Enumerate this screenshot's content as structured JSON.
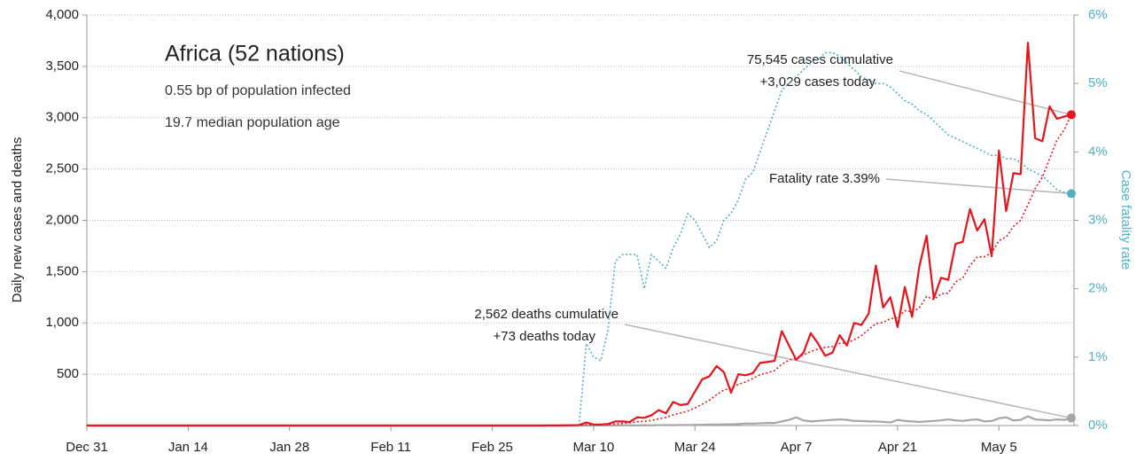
{
  "chart_data": {
    "type": "line",
    "title": "Africa (52 nations)",
    "annotations": [
      "0.55 bp of population infected",
      "19.7 median population age"
    ],
    "callouts": {
      "cases": [
        "75,545 cases cumulative",
        "+3,029 cases today"
      ],
      "fatality": [
        "Fatality rate 3.39%"
      ],
      "deaths": [
        "2,562 deaths cumulative",
        "+73 deaths today"
      ]
    },
    "ylabel": "Daily new cases and deaths",
    "y2label": "Case fatality rate",
    "categories": [
      "Dec 31",
      null,
      null,
      null,
      null,
      null,
      null,
      null,
      null,
      null,
      null,
      null,
      null,
      null,
      "Jan 14",
      null,
      null,
      null,
      null,
      null,
      null,
      null,
      null,
      null,
      null,
      null,
      null,
      null,
      "Jan 28",
      null,
      null,
      null,
      null,
      null,
      null,
      null,
      null,
      null,
      null,
      null,
      null,
      null,
      "Feb 11",
      null,
      null,
      null,
      null,
      null,
      null,
      null,
      null,
      null,
      null,
      null,
      null,
      null,
      "Feb 25",
      null,
      null,
      null,
      null,
      null,
      null,
      null,
      null,
      null,
      null,
      null,
      null,
      null,
      "Mar 10",
      null,
      null,
      null,
      null,
      null,
      null,
      null,
      null,
      null,
      null,
      null,
      null,
      null,
      "Mar 24",
      null,
      null,
      null,
      null,
      null,
      null,
      null,
      null,
      null,
      null,
      null,
      null,
      null,
      "Apr 7",
      null,
      null,
      null,
      null,
      null,
      null,
      null,
      null,
      null,
      null,
      null,
      null,
      null,
      "Apr 21",
      null,
      null,
      null,
      null,
      null,
      null,
      null,
      null,
      null,
      null,
      null,
      null,
      null,
      "May 5",
      null,
      null,
      null,
      null,
      null,
      null,
      null,
      null,
      null,
      null
    ],
    "ylim": [
      0,
      4000
    ],
    "yticks": [
      500,
      {
        "value": 1000,
        "label": "1,000"
      },
      {
        "value": 1500,
        "label": "1,500"
      },
      {
        "value": 2000,
        "label": "2,000"
      },
      {
        "value": 2500,
        "label": "2,500"
      },
      {
        "value": 3000,
        "label": "3,000"
      },
      {
        "value": 3500,
        "label": "3,500"
      },
      {
        "value": 4000,
        "label": "4,000"
      }
    ],
    "y2lim": [
      0,
      6
    ],
    "y2ticks": [
      {
        "value": 0,
        "label": "0%"
      },
      {
        "value": 1,
        "label": "1%"
      },
      {
        "value": 2,
        "label": "2%"
      },
      {
        "value": 3,
        "label": "3%"
      },
      {
        "value": 4,
        "label": "4%"
      },
      {
        "value": 5,
        "label": "5%"
      },
      {
        "value": 6,
        "label": "6%"
      }
    ],
    "grid": true,
    "series": [
      {
        "color": "#e8141c",
        "dashed": false,
        "end_marker": true,
        "values": [
          0,
          0,
          0,
          0,
          0,
          0,
          0,
          0,
          0,
          0,
          0,
          0,
          0,
          0,
          0,
          0,
          0,
          0,
          0,
          0,
          0,
          0,
          0,
          0,
          0,
          0,
          0,
          0,
          0,
          0,
          0,
          0,
          0,
          0,
          0,
          0,
          0,
          0,
          0,
          0,
          0,
          0,
          0,
          0,
          0,
          0,
          0,
          0,
          0,
          0,
          0,
          0,
          0,
          0,
          0,
          0,
          0,
          0,
          0,
          0,
          0,
          0,
          0,
          0,
          1,
          1,
          2,
          3,
          5,
          30,
          10,
          10,
          15,
          40,
          40,
          35,
          80,
          75,
          100,
          150,
          120,
          230,
          200,
          210,
          330,
          450,
          480,
          580,
          520,
          320,
          500,
          490,
          510,
          610,
          620,
          630,
          920,
          780,
          640,
          710,
          900,
          800,
          680,
          710,
          880,
          780,
          1000,
          980,
          1090,
          1560,
          1150,
          1250,
          960,
          1350,
          1060,
          1550,
          1850,
          1240,
          1440,
          1420,
          1770,
          1790,
          2110,
          1900,
          2010,
          1650,
          2680,
          2090,
          2460,
          2450,
          3730,
          2800,
          2770,
          3110,
          2990,
          3010,
          3029
        ]
      },
      {
        "color": "#e8141c",
        "dashed": true,
        "end_marker": false,
        "values": [
          0,
          0,
          0,
          0,
          0,
          0,
          0,
          0,
          0,
          0,
          0,
          0,
          0,
          0,
          0,
          0,
          0,
          0,
          0,
          0,
          0,
          0,
          0,
          0,
          0,
          0,
          0,
          0,
          0,
          0,
          0,
          0,
          0,
          0,
          0,
          0,
          0,
          0,
          0,
          0,
          0,
          0,
          0,
          0,
          0,
          0,
          0,
          0,
          0,
          0,
          0,
          0,
          0,
          0,
          0,
          0,
          0,
          0,
          0,
          0,
          0,
          0,
          0,
          0,
          0,
          1,
          1,
          2,
          3,
          7,
          8,
          9,
          11,
          16,
          21,
          27,
          37,
          41,
          50,
          66,
          78,
          105,
          121,
          141,
          171,
          207,
          247,
          300,
          347,
          363,
          401,
          424,
          458,
          496,
          513,
          536,
          597,
          637,
          659,
          688,
          721,
          746,
          762,
          770,
          800,
          807,
          836,
          876,
          934,
          993,
          1005,
          1041,
          1050,
          1120,
          1107,
          1146,
          1259,
          1228,
          1283,
          1290,
          1400,
          1436,
          1560,
          1642,
          1645,
          1684,
          1802,
          1837,
          1941,
          2000,
          2150,
          2310,
          2420,
          2600,
          2780,
          2880,
          3029
        ]
      },
      {
        "color": "#a6a6a6",
        "dashed": false,
        "end_marker": true,
        "values": [
          0,
          0,
          0,
          0,
          0,
          0,
          0,
          0,
          0,
          0,
          0,
          0,
          0,
          0,
          0,
          0,
          0,
          0,
          0,
          0,
          0,
          0,
          0,
          0,
          0,
          0,
          0,
          0,
          0,
          0,
          0,
          0,
          0,
          0,
          0,
          0,
          0,
          0,
          0,
          0,
          0,
          0,
          0,
          0,
          0,
          0,
          0,
          0,
          0,
          0,
          0,
          0,
          0,
          0,
          0,
          0,
          0,
          0,
          0,
          0,
          0,
          0,
          0,
          0,
          0,
          0,
          0,
          0,
          0,
          0,
          1,
          0,
          1,
          1,
          2,
          2,
          1,
          3,
          2,
          4,
          5,
          3,
          6,
          5,
          7,
          8,
          10,
          9,
          12,
          11,
          14,
          20,
          18,
          22,
          25,
          24,
          40,
          55,
          80,
          50,
          40,
          45,
          50,
          55,
          60,
          55,
          45,
          45,
          40,
          40,
          35,
          30,
          55,
          45,
          40,
          35,
          40,
          45,
          50,
          60,
          50,
          45,
          55,
          60,
          40,
          45,
          70,
          80,
          50,
          55,
          90,
          60,
          55,
          50,
          60,
          55,
          73
        ]
      },
      {
        "color": "#4fb0c6",
        "dashed": true,
        "end_marker": true,
        "axis": "y2",
        "values": [
          null,
          null,
          null,
          null,
          null,
          null,
          null,
          null,
          null,
          null,
          null,
          null,
          null,
          null,
          null,
          null,
          null,
          null,
          null,
          null,
          null,
          null,
          null,
          null,
          null,
          null,
          null,
          null,
          null,
          null,
          null,
          null,
          null,
          null,
          null,
          null,
          null,
          null,
          null,
          null,
          null,
          null,
          null,
          null,
          null,
          null,
          null,
          null,
          null,
          null,
          null,
          null,
          null,
          null,
          null,
          null,
          null,
          null,
          null,
          null,
          null,
          null,
          null,
          null,
          null,
          null,
          null,
          null,
          0,
          1.2,
          1.0,
          0.95,
          1.4,
          2.4,
          2.5,
          2.5,
          2.5,
          2.0,
          2.5,
          2.4,
          2.3,
          2.6,
          2.8,
          3.1,
          3.0,
          2.8,
          2.6,
          2.7,
          3.0,
          3.1,
          3.3,
          3.6,
          3.7,
          4.0,
          4.3,
          4.6,
          4.9,
          5.0,
          5.1,
          5.2,
          5.3,
          5.35,
          5.45,
          5.45,
          5.4,
          5.3,
          5.2,
          5.1,
          5.05,
          5.0,
          5.0,
          4.95,
          4.85,
          4.75,
          4.7,
          4.6,
          4.55,
          4.45,
          4.35,
          4.25,
          4.2,
          4.15,
          4.1,
          4.05,
          4.0,
          3.95,
          3.95,
          3.9,
          3.9,
          3.85,
          3.75,
          3.7,
          3.65,
          3.55,
          3.45,
          3.41,
          3.39
        ]
      }
    ]
  }
}
